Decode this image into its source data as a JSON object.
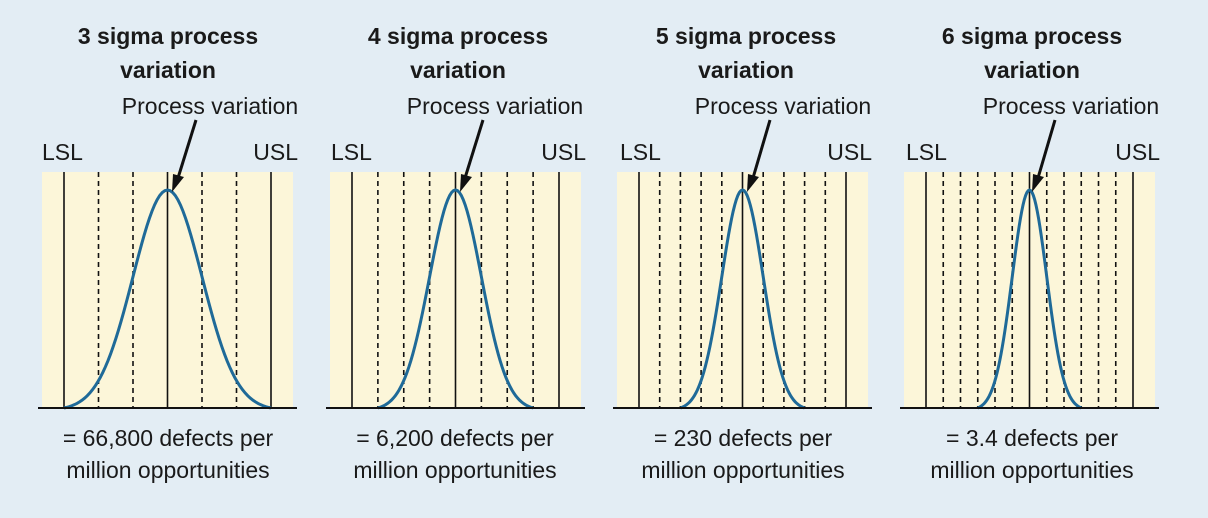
{
  "colors": {
    "background": "#e3edf4",
    "panel": "#fcf6d9",
    "curve": "#1f6a98",
    "lines": "#111111"
  },
  "panels": [
    {
      "title_line1": "3 sigma process",
      "title_line2": "variation",
      "callout": "Process variation",
      "lsl": "LSL",
      "usl": "USL",
      "defects_line1": "= 66,800 defects per",
      "defects_line2": "million opportunities",
      "sigma_level": 3
    },
    {
      "title_line1": "4 sigma process",
      "title_line2": "variation",
      "callout": "Process variation",
      "lsl": "LSL",
      "usl": "USL",
      "defects_line1": "= 6,200 defects per",
      "defects_line2": "million opportunities",
      "sigma_level": 4
    },
    {
      "title_line1": "5 sigma process",
      "title_line2": "variation",
      "callout": "Process variation",
      "lsl": "LSL",
      "usl": "USL",
      "defects_line1": "= 230 defects per",
      "defects_line2": "million opportunities",
      "sigma_level": 5
    },
    {
      "title_line1": "6 sigma process",
      "title_line2": "variation",
      "callout": "Process variation",
      "lsl": "LSL",
      "usl": "USL",
      "defects_line1": "= 3.4 defects per",
      "defects_line2": "million opportunities",
      "sigma_level": 6
    }
  ]
}
